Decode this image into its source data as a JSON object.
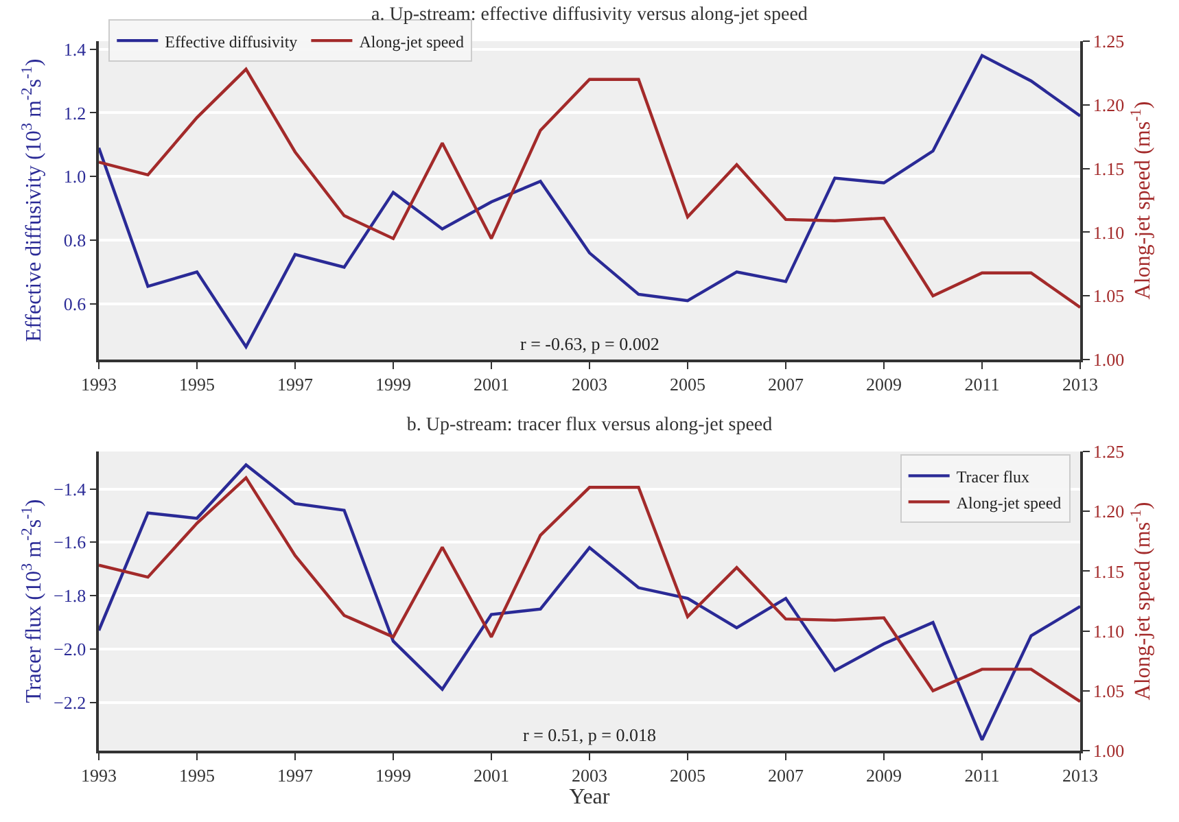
{
  "chart_data": [
    {
      "type": "line",
      "title": "a. Up-stream: effective diffusivity versus along-jet speed",
      "ylabel": "Effective diffusivity (10$^{3}$ m$^{-2}$s$^{-1}$)",
      "y2label": "Along-jet speed (ms$^{-1}$)",
      "x": [
        1993,
        1994,
        1995,
        1996,
        1997,
        1998,
        1999,
        2000,
        2001,
        2002,
        2003,
        2004,
        2005,
        2006,
        2007,
        2008,
        2009,
        2010,
        2011,
        2012,
        2013
      ],
      "series": [
        {
          "name": "Effective diffusivity",
          "color": "#2a2a96",
          "values": [
            1.09,
            0.655,
            0.7,
            0.465,
            0.755,
            0.715,
            0.95,
            0.835,
            0.92,
            0.985,
            0.76,
            0.63,
            0.61,
            0.7,
            0.67,
            0.995,
            0.98,
            1.08,
            1.38,
            1.3,
            1.19
          ]
        },
        {
          "name": "Along-jet speed",
          "color": "#a32a2a",
          "axis": "y2",
          "values": [
            1.155,
            1.145,
            1.19,
            1.228,
            1.163,
            1.113,
            1.095,
            1.17,
            1.095,
            1.18,
            1.22,
            1.22,
            1.112,
            1.153,
            1.11,
            1.109,
            1.111,
            1.05,
            1.068,
            1.068,
            1.041
          ]
        }
      ],
      "xlim": [
        1993,
        2013
      ],
      "xticks": [
        1993,
        1995,
        1997,
        1999,
        2001,
        2003,
        2005,
        2007,
        2009,
        2011,
        2013
      ],
      "ylim": [
        0.425,
        1.425
      ],
      "yticks": [
        0.6,
        0.8,
        {
          "value": 1,
          "label": "1.0"
        },
        1.2,
        1.4
      ],
      "y2lim": [
        1.0,
        1.25
      ],
      "y2ticks": [
        {
          "value": 1,
          "label": "1.00"
        },
        1.05,
        {
          "value": 1.1,
          "label": "1.10"
        },
        1.15,
        {
          "value": 1.2,
          "label": "1.20"
        },
        1.25
      ],
      "grid": "y",
      "legend": "top left",
      "annotations": [
        "r = -0.63, p = 0.002"
      ]
    },
    {
      "type": "line",
      "title": "b. Up-stream: tracer flux versus along-jet speed",
      "xlabel": "Year",
      "ylabel": "Tracer flux (10$^{3}$ m$^{-2}$s$^{-1}$)",
      "y2label": "Along-jet speed (ms$^{-1}$)",
      "x": [
        1993,
        1994,
        1995,
        1996,
        1997,
        1998,
        1999,
        2000,
        2001,
        2002,
        2003,
        2004,
        2005,
        2006,
        2007,
        2008,
        2009,
        2010,
        2011,
        2012,
        2013
      ],
      "series": [
        {
          "name": "Tracer flux",
          "color": "#2a2a96",
          "values": [
            -1.93,
            -1.49,
            -1.51,
            -1.31,
            -1.455,
            -1.48,
            -1.97,
            -2.15,
            -1.87,
            -1.85,
            -1.62,
            -1.77,
            -1.81,
            -1.92,
            -1.81,
            -2.08,
            -1.98,
            -1.9,
            -2.34,
            -1.95,
            -1.84
          ]
        },
        {
          "name": "Along-jet speed",
          "color": "#a32a2a",
          "axis": "y2",
          "values": [
            1.155,
            1.145,
            1.19,
            1.228,
            1.163,
            1.113,
            1.095,
            1.17,
            1.095,
            1.18,
            1.22,
            1.22,
            1.112,
            1.153,
            1.11,
            1.109,
            1.111,
            1.05,
            1.068,
            1.068,
            1.041
          ]
        }
      ],
      "xlim": [
        1993,
        2013
      ],
      "xticks": [
        1993,
        1995,
        1997,
        1999,
        2001,
        2003,
        2005,
        2007,
        2009,
        2011,
        2013
      ],
      "ylim": [
        -2.38,
        -1.26
      ],
      "yticks": [
        {
          "value": -2.2,
          "label": "−2.2"
        },
        {
          "value": -2.0,
          "label": "−2.0"
        },
        {
          "value": -1.8,
          "label": "−1.8"
        },
        {
          "value": -1.6,
          "label": "−1.6"
        },
        {
          "value": -1.4,
          "label": "−1.4"
        }
      ],
      "y2lim": [
        1.0,
        1.25
      ],
      "y2ticks": [
        {
          "value": 1,
          "label": "1.00"
        },
        1.05,
        {
          "value": 1.1,
          "label": "1.10"
        },
        1.15,
        {
          "value": 1.2,
          "label": "1.20"
        },
        1.25
      ],
      "grid": "y",
      "legend": "top right",
      "annotations": [
        "r = 0.51, p = 0.018"
      ]
    }
  ]
}
